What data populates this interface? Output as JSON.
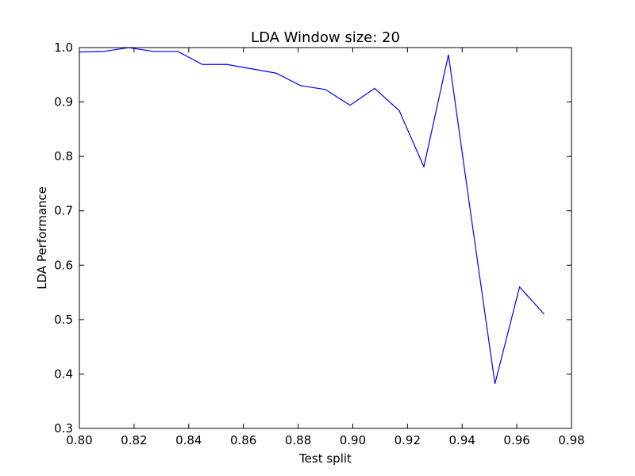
{
  "chart_data": {
    "type": "line",
    "title": "LDA Window size: 20",
    "xlabel": "Test split",
    "ylabel": "LDA Performance",
    "xlim": [
      0.8,
      0.98
    ],
    "ylim": [
      0.3,
      1.0
    ],
    "grid": false,
    "xticks": [
      "0.80",
      "0.82",
      "0.84",
      "0.86",
      "0.88",
      "0.90",
      "0.92",
      "0.94",
      "0.96",
      "0.98"
    ],
    "yticks": [
      "0.3",
      "0.4",
      "0.5",
      "0.6",
      "0.7",
      "0.8",
      "0.9",
      "1.0"
    ],
    "series": [
      {
        "color": "#0000ff",
        "x": [
          0.8,
          0.809,
          0.818,
          0.827,
          0.836,
          0.845,
          0.854,
          0.863,
          0.872,
          0.881,
          0.89,
          0.899,
          0.908,
          0.917,
          0.926,
          0.935,
          0.943,
          0.952,
          0.961,
          0.97
        ],
        "y": [
          0.992,
          0.993,
          1.0,
          0.993,
          0.993,
          0.969,
          0.969,
          0.961,
          0.953,
          0.93,
          0.923,
          0.894,
          0.925,
          0.884,
          0.781,
          0.987,
          0.7,
          0.382,
          0.56,
          0.51
        ]
      }
    ]
  }
}
